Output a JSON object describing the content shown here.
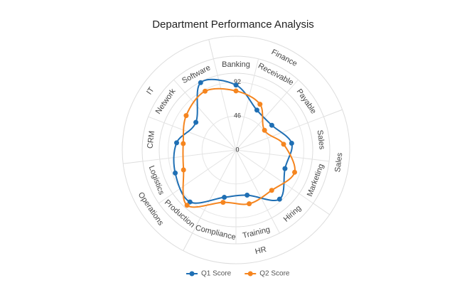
{
  "chart_data": {
    "type": "radar",
    "title": "Department Performance Analysis",
    "groups": [
      {
        "name": "Finance",
        "categories": [
          "Banking",
          "Receivable",
          "Payable"
        ]
      },
      {
        "name": "Sales",
        "categories": [
          "Sales",
          "Marketing"
        ]
      },
      {
        "name": "HR",
        "categories": [
          "Hiring",
          "Training",
          "Compliance"
        ]
      },
      {
        "name": "Operations",
        "categories": [
          "Production",
          "Logistics"
        ]
      },
      {
        "name": "IT",
        "categories": [
          "CRM",
          "Network",
          "Software"
        ]
      }
    ],
    "series": [
      {
        "name": "Q1 Score",
        "color": "#1f6fb4",
        "values": [
          88,
          61,
          59,
          76,
          71,
          89,
          63,
          66,
          94,
          88,
          81,
          66,
          103
        ]
      },
      {
        "name": "Q2 Score",
        "color": "#f5851f",
        "values": [
          80,
          70,
          47,
          65,
          85,
          73,
          75,
          73,
          100,
          76,
          72,
          82,
          90
        ]
      }
    ],
    "ylim": [
      0,
      104
    ],
    "yticks": [
      0,
      46,
      92
    ],
    "grid": true,
    "legend": "bottom"
  }
}
